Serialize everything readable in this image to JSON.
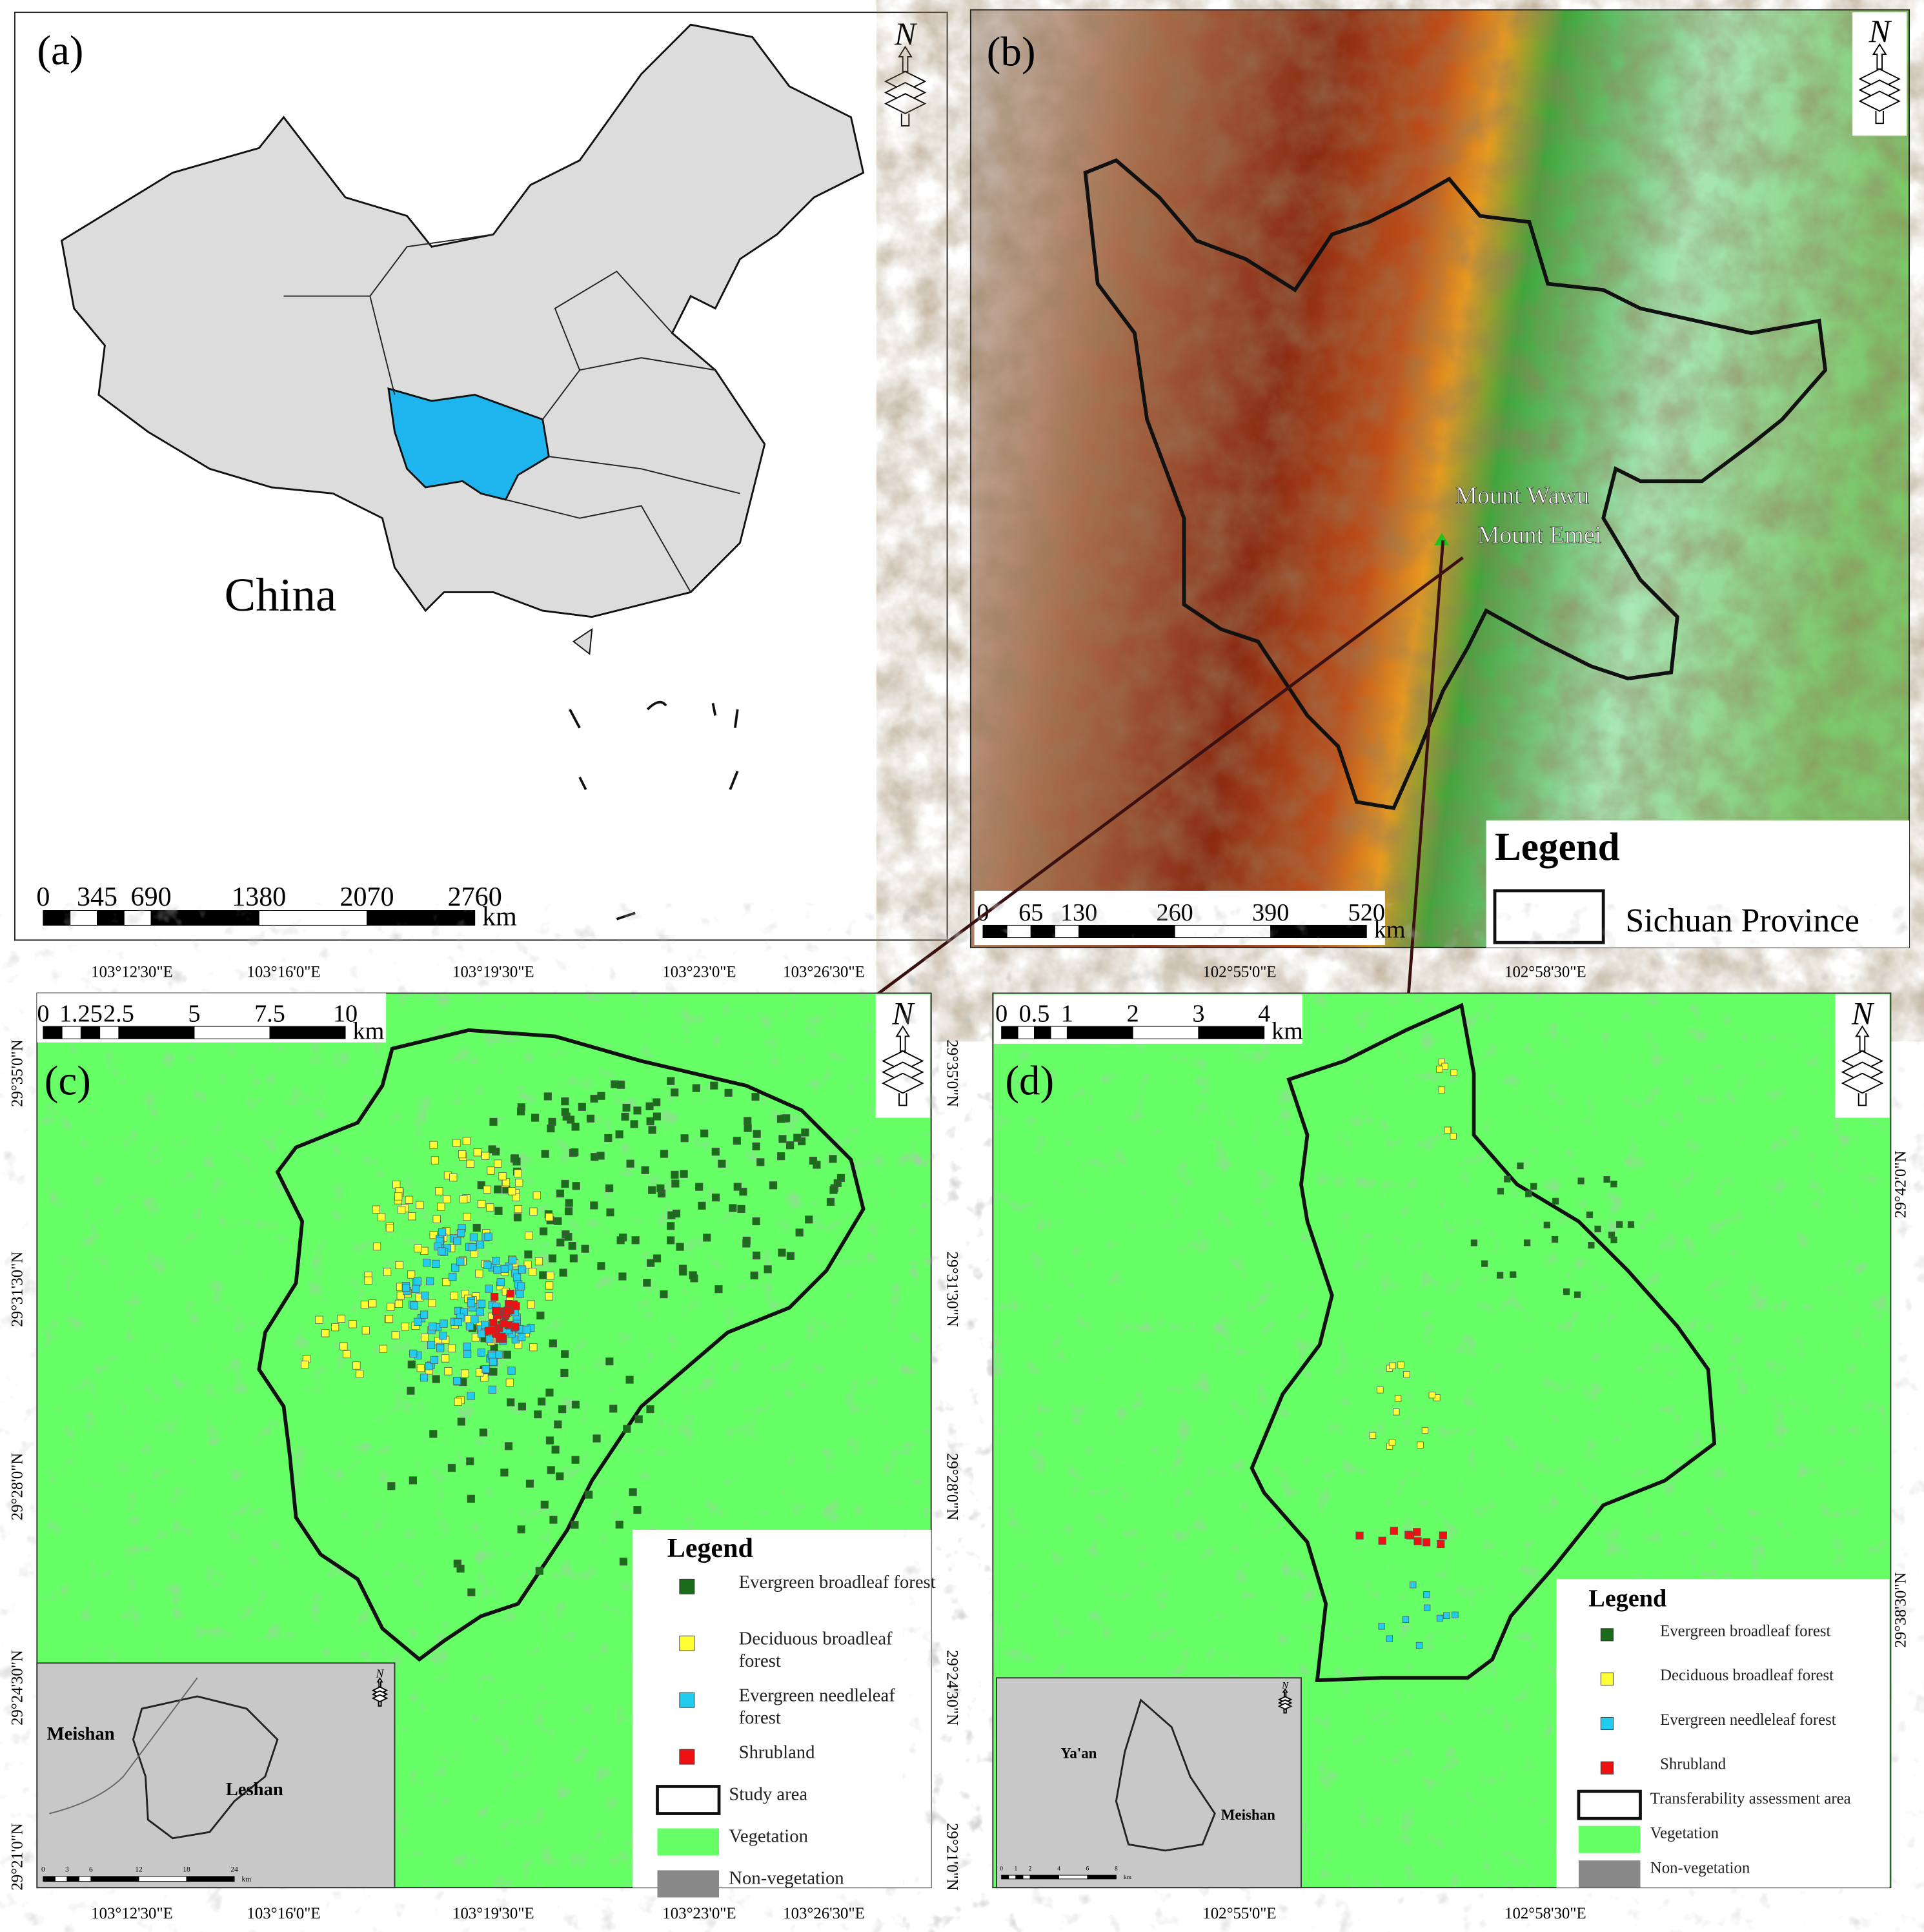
{
  "panels": {
    "a": {
      "label": "(a)",
      "country": "China",
      "north": "N",
      "scale_bar": {
        "ticks": [
          0,
          345,
          690,
          1380,
          2070,
          2760
        ],
        "unit": "km"
      }
    },
    "b": {
      "label": "(b)",
      "north": "N",
      "places": [
        "Mount Wawu",
        "Mount Emei"
      ],
      "legend": {
        "title": "Legend",
        "items": [
          "Sichuan Province"
        ]
      },
      "scale_bar": {
        "ticks": [
          0,
          65,
          130,
          260,
          390,
          520
        ],
        "unit": "km"
      }
    },
    "c": {
      "label": "(c)",
      "north": "N",
      "lon_labels": [
        "103°12'30\"E",
        "103°16'0\"E",
        "103°19'30\"E",
        "103°23'0\"E",
        "103°26'30\"E"
      ],
      "lat_labels": [
        "29°35'0\"N",
        "29°31'30\"N",
        "29°28'0\"N",
        "29°24'30\"N",
        "29°21'0\"N"
      ],
      "scale_bar": {
        "ticks": [
          0,
          1.25,
          2.5,
          5,
          7.5,
          10
        ],
        "unit": "km"
      },
      "legend": {
        "title": "Legend",
        "items": [
          "Evergreen broadleaf forest",
          "Deciduous broadleaf forest",
          "Evergreen needleleaf forest",
          "Shrubland",
          "Study area",
          "Vegetation",
          "Non-vegetation"
        ]
      },
      "inset": {
        "places": [
          "Meishan",
          "Leshan"
        ],
        "north": "N",
        "scale_bar": {
          "ticks": [
            0,
            3,
            6,
            12,
            18,
            24
          ],
          "unit": "km"
        }
      }
    },
    "d": {
      "label": "(d)",
      "north": "N",
      "lon_labels": [
        "102°55'0\"E",
        "102°58'30\"E"
      ],
      "lat_labels": [
        "29°42'0\"N",
        "29°38'30\"N"
      ],
      "scale_bar": {
        "ticks": [
          0,
          0.5,
          1,
          2,
          3,
          4
        ],
        "unit": "km"
      },
      "legend": {
        "title": "Legend",
        "items": [
          "Evergreen broadleaf forest",
          "Deciduous broadleaf forest",
          "Evergreen needleleaf forest",
          "Shrubland",
          "Transferability assessment area",
          "Vegetation",
          "Non-vegetation"
        ]
      },
      "inset": {
        "places": [
          "Ya'an",
          "Meishan"
        ],
        "north": "N",
        "scale_bar": {
          "ticks": [
            0,
            1,
            2,
            4,
            6,
            8
          ],
          "unit": "km"
        }
      }
    }
  }
}
